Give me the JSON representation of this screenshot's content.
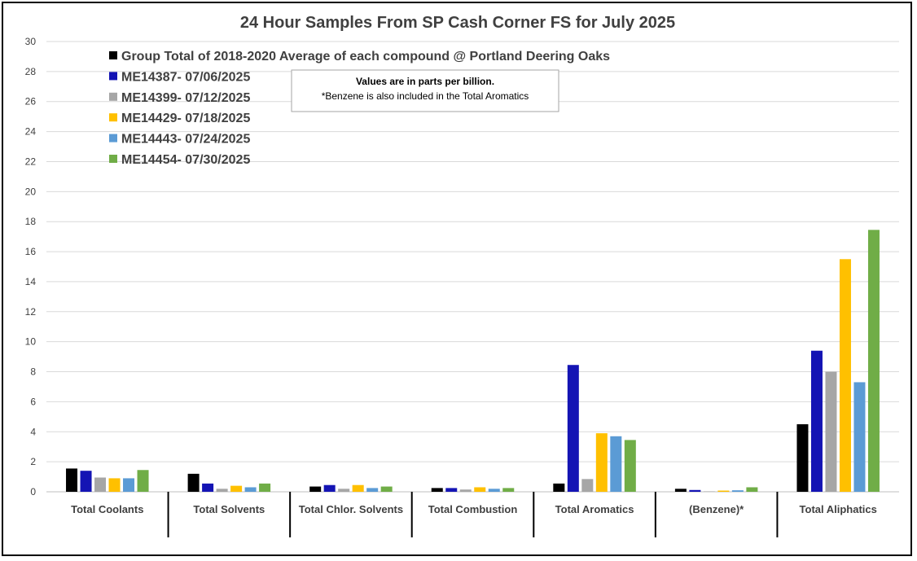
{
  "chart_data": {
    "type": "bar",
    "title": "24 Hour Samples From SP Cash Corner FS for July 2025",
    "xlabel": "",
    "ylabel": "",
    "ylim": [
      0,
      30
    ],
    "yticks": [
      0,
      2,
      4,
      6,
      8,
      10,
      12,
      14,
      16,
      18,
      20,
      22,
      24,
      26,
      28,
      30
    ],
    "grid": true,
    "legend_position": "top-left",
    "categories": [
      "Total Coolants",
      "Total Solvents",
      "Total Chlor. Solvents",
      "Total Combustion",
      "Total Aromatics",
      "(Benzene)*",
      "Total Aliphatics"
    ],
    "series": [
      {
        "name": "Group Total of 2018-2020 Average of each compound @ Portland Deering Oaks",
        "color": "#000000",
        "values": [
          1.55,
          1.2,
          0.35,
          0.25,
          0.55,
          0.2,
          4.5
        ]
      },
      {
        "name": "ME14387- 07/06/2025",
        "color": "#1414b4",
        "values": [
          1.4,
          0.55,
          0.45,
          0.25,
          8.45,
          0.12,
          9.4
        ]
      },
      {
        "name": "ME14399- 07/12/2025",
        "color": "#a6a6a6",
        "values": [
          0.95,
          0.2,
          0.2,
          0.15,
          0.85,
          0.03,
          8.0
        ]
      },
      {
        "name": "ME14429- 07/18/2025",
        "color": "#ffc000",
        "values": [
          0.9,
          0.4,
          0.45,
          0.3,
          3.9,
          0.08,
          15.5
        ]
      },
      {
        "name": "ME14443- 07/24/2025",
        "color": "#5b9bd5",
        "values": [
          0.9,
          0.3,
          0.25,
          0.2,
          3.7,
          0.1,
          7.3
        ]
      },
      {
        "name": "ME14454- 07/30/2025",
        "color": "#70ad47",
        "values": [
          1.45,
          0.55,
          0.35,
          0.25,
          3.45,
          0.3,
          17.45
        ]
      }
    ],
    "annotation": {
      "line1": "Values are in parts per billion.",
      "line2": "*Benzene is also included in the Total Aromatics"
    }
  }
}
